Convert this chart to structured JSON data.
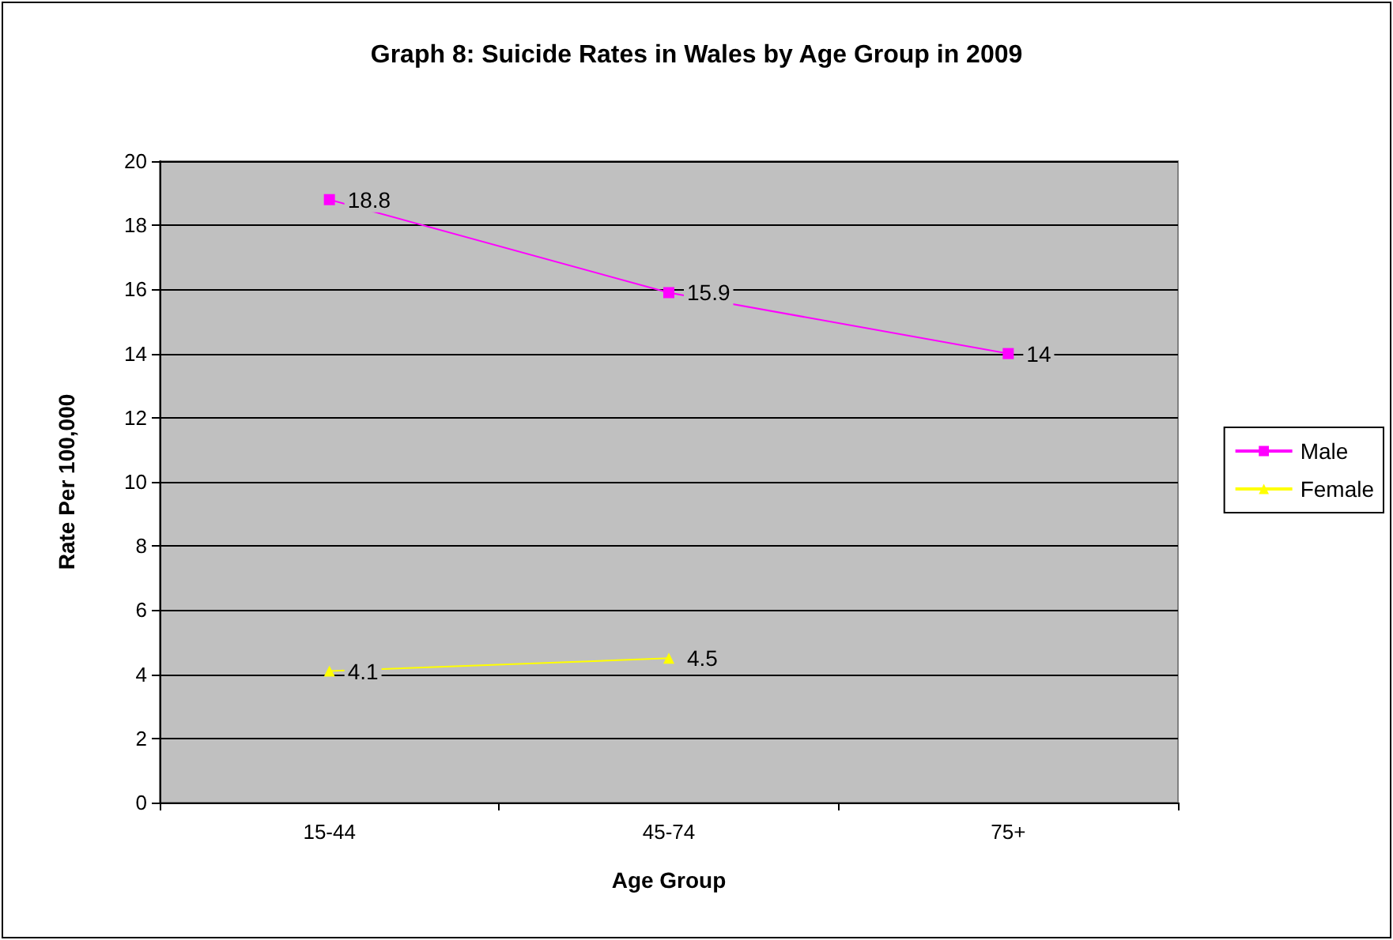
{
  "chart_data": {
    "type": "line",
    "title": "Graph 8: Suicide Rates in Wales by Age Group in 2009",
    "xlabel": "Age Group",
    "ylabel": "Rate Per 100,000",
    "categories": [
      "15-44",
      "45-74",
      "75+"
    ],
    "series": [
      {
        "name": "Male",
        "color": "#ff00ff",
        "marker": "square",
        "values": [
          18.8,
          15.9,
          14
        ]
      },
      {
        "name": "Female",
        "color": "#ffff00",
        "marker": "triangle",
        "values": [
          4.1,
          4.5,
          null
        ]
      }
    ],
    "ylim": [
      0,
      20
    ],
    "yticks": [
      0,
      2,
      4,
      6,
      8,
      10,
      12,
      14,
      16,
      18,
      20
    ],
    "grid": "y",
    "legend": "right",
    "data_labels": true
  }
}
